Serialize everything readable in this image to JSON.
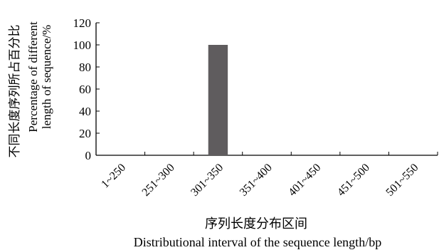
{
  "chart_data": {
    "type": "bar",
    "categories": [
      "1~250",
      "251~300",
      "301~350",
      "351~400",
      "401~450",
      "451~500",
      "501~550"
    ],
    "values": [
      0,
      0,
      100,
      0,
      0,
      0,
      0
    ],
    "ylim": [
      0,
      120
    ],
    "yticks": [
      0,
      20,
      40,
      60,
      80,
      100,
      120
    ],
    "ylabel_cn": "不同长度序列所占百分比",
    "ylabel_en_1": "Percentage of different",
    "ylabel_en_2": "length of sequence/%",
    "xlabel_cn": "序列长度分布区间",
    "xlabel_en": "Distributional interval of the sequence length/bp",
    "bar_color": "#5f5c5e",
    "grid": false,
    "legend": "none"
  }
}
